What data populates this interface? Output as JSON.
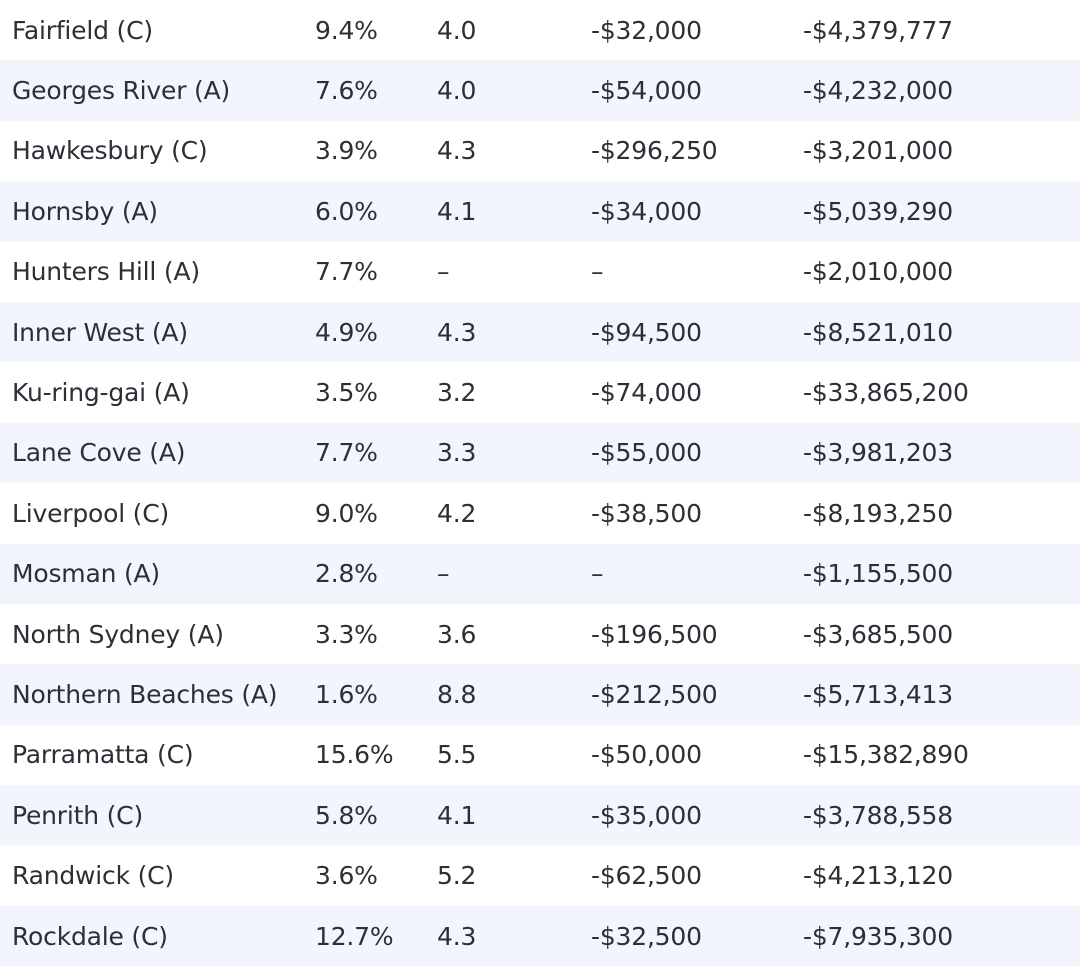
{
  "table": {
    "rows": [
      [
        "Fairfield (C)",
        "9.4%",
        "4.0",
        "-$32,000",
        "-$4,379,777"
      ],
      [
        "Georges River (A)",
        "7.6%",
        "4.0",
        "-$54,000",
        "-$4,232,000"
      ],
      [
        "Hawkesbury (C)",
        "3.9%",
        "4.3",
        "-$296,250",
        "-$3,201,000"
      ],
      [
        "Hornsby (A)",
        "6.0%",
        "4.1",
        "-$34,000",
        "-$5,039,290"
      ],
      [
        "Hunters Hill (A)",
        "7.7%",
        "–",
        "–",
        "-$2,010,000"
      ],
      [
        "Inner West (A)",
        "4.9%",
        "4.3",
        "-$94,500",
        "-$8,521,010"
      ],
      [
        "Ku-ring-gai (A)",
        "3.5%",
        "3.2",
        "-$74,000",
        "-$33,865,200"
      ],
      [
        "Lane Cove (A)",
        "7.7%",
        "3.3",
        "-$55,000",
        "-$3,981,203"
      ],
      [
        "Liverpool (C)",
        "9.0%",
        "4.2",
        "-$38,500",
        "-$8,193,250"
      ],
      [
        "Mosman (A)",
        "2.8%",
        "–",
        "–",
        "-$1,155,500"
      ],
      [
        "North Sydney (A)",
        "3.3%",
        "3.6",
        "-$196,500",
        "-$3,685,500"
      ],
      [
        "Northern Beaches (A)",
        "1.6%",
        "8.8",
        "-$212,500",
        "-$5,713,413"
      ],
      [
        "Parramatta (C)",
        "15.6%",
        "5.5",
        "-$50,000",
        "-$15,382,890"
      ],
      [
        "Penrith (C)",
        "5.8%",
        "4.1",
        "-$35,000",
        "-$3,788,558"
      ],
      [
        "Randwick (C)",
        "3.6%",
        "5.2",
        "-$62,500",
        "-$4,213,120"
      ],
      [
        "Rockdale (C)",
        "12.7%",
        "4.3",
        "-$32,500",
        "-$7,935,300"
      ]
    ]
  }
}
